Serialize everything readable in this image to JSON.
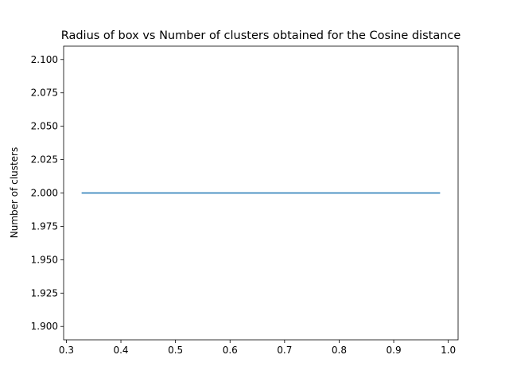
{
  "chart_data": {
    "type": "line",
    "title": "Radius of box vs Number of clusters obtained for the Cosine distance",
    "xlabel": "",
    "ylabel": "Number of clusters",
    "xlim": [
      0.295,
      1.018
    ],
    "ylim": [
      1.89,
      2.11
    ],
    "x_ticks": [
      "0.3",
      "0.4",
      "0.5",
      "0.6",
      "0.7",
      "0.8",
      "0.9",
      "1.0"
    ],
    "y_ticks": [
      "1.900",
      "1.925",
      "1.950",
      "1.975",
      "2.000",
      "2.025",
      "2.050",
      "2.075",
      "2.100"
    ],
    "grid": false,
    "series": [
      {
        "color": "#1f77b4",
        "x": [
          0.328,
          0.985
        ],
        "y": [
          2.0,
          2.0
        ]
      }
    ]
  }
}
